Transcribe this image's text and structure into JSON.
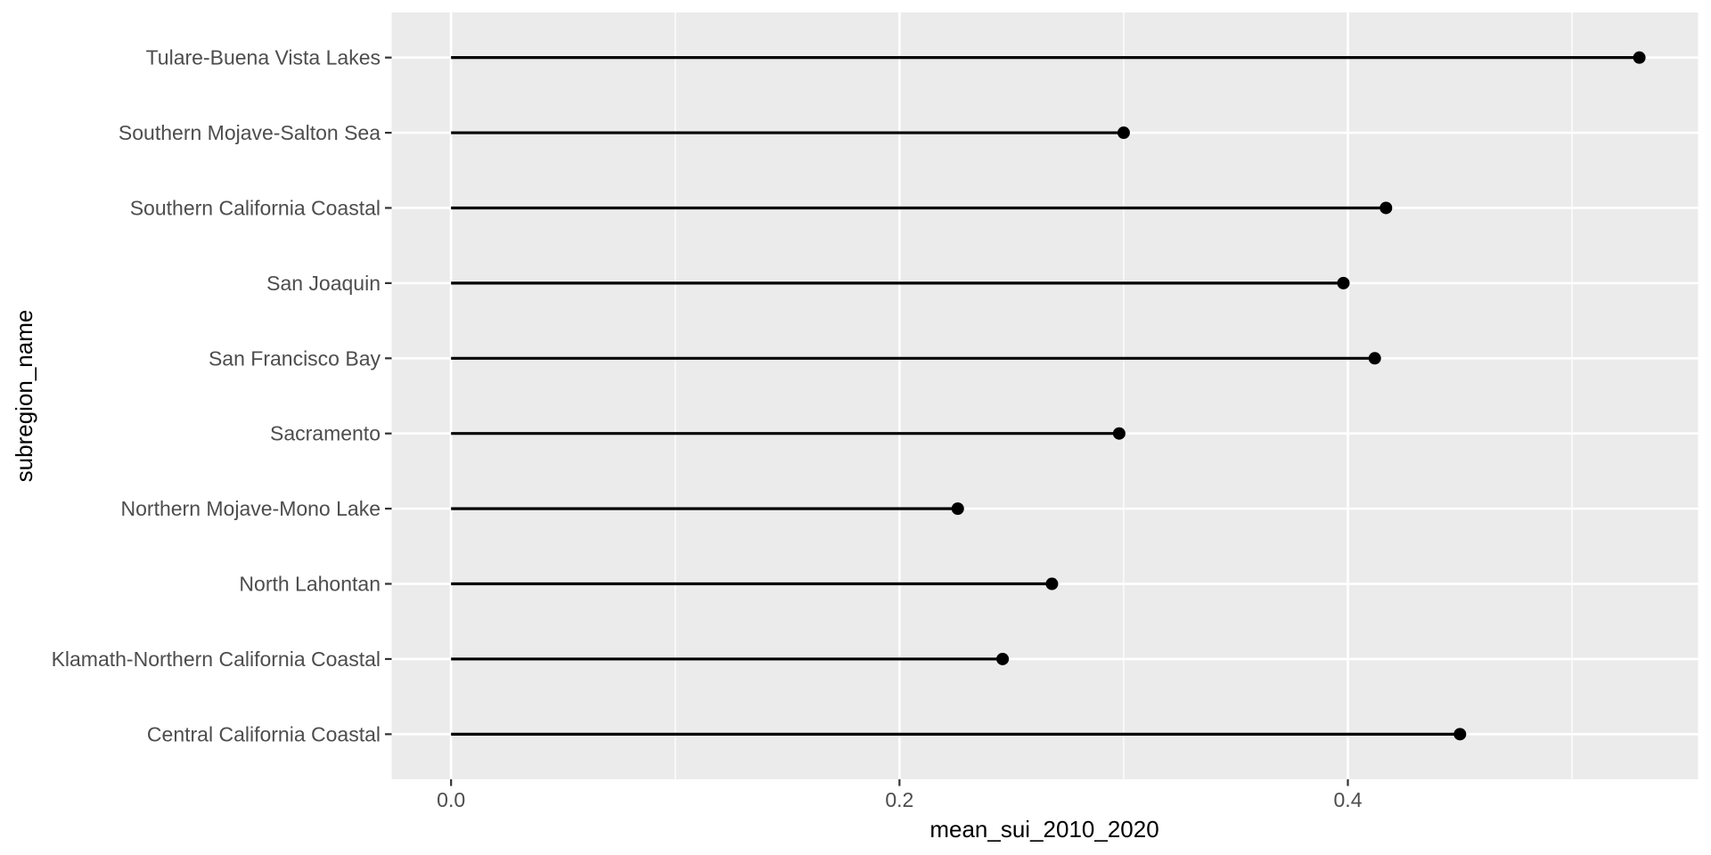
{
  "chart_data": {
    "type": "scatter",
    "variant": "lollipop",
    "orientation": "horizontal",
    "title": "",
    "xlabel": "mean_sui_2010_2020",
    "ylabel": "subregion_name",
    "categories": [
      "Tulare-Buena Vista Lakes",
      "Southern Mojave-Salton Sea",
      "Southern California Coastal",
      "San Joaquin",
      "San Francisco Bay",
      "Sacramento",
      "Northern Mojave-Mono Lake",
      "North Lahontan",
      "Klamath-Northern California Coastal",
      "Central California Coastal"
    ],
    "values": [
      0.53,
      0.3,
      0.417,
      0.398,
      0.412,
      0.298,
      0.226,
      0.268,
      0.246,
      0.45
    ],
    "segment_start": 0.0,
    "x_ticks": {
      "values": [
        0.0,
        0.2,
        0.4
      ],
      "labels": [
        "0.0",
        "0.2",
        "0.4"
      ]
    },
    "x_minor_ticks": [
      0.1,
      0.3,
      0.5
    ],
    "xlim": [
      -0.0265,
      0.5562
    ],
    "grid": "on",
    "legend": "none",
    "colors": {
      "figure_background": "#FFFFFF",
      "panel_background": "#EBEBEB",
      "grid": "#FFFFFF",
      "segment": "#000000",
      "point": "#000000",
      "axis_text": "#4D4D4D",
      "axis_title": "#000000",
      "tick_mark": "#333333"
    }
  }
}
